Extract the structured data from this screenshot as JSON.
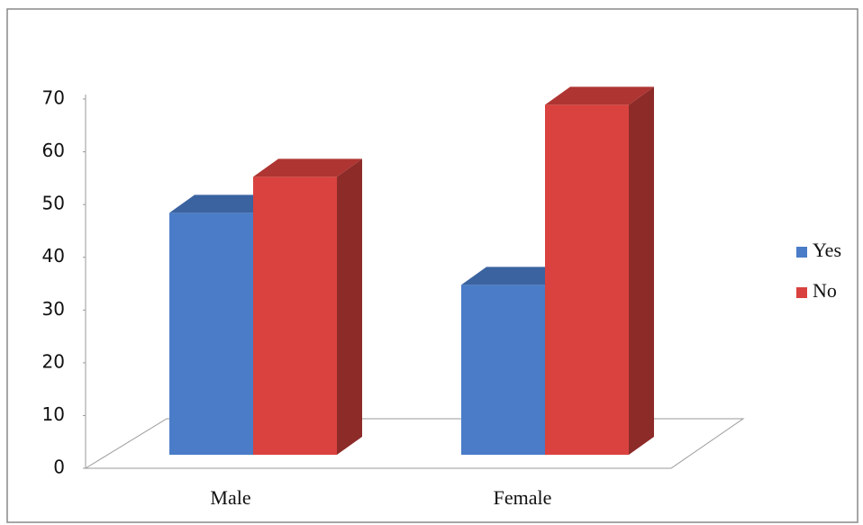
{
  "chart_data": {
    "type": "bar3d",
    "categories": [
      "Male",
      "Female"
    ],
    "series": [
      {
        "name": "Yes",
        "color": "#4a7cc8",
        "values": [
          47,
          33
        ]
      },
      {
        "name": "No",
        "color": "#d9423f",
        "values": [
          54,
          68
        ]
      }
    ],
    "ylim": [
      0,
      70
    ],
    "yticks": [
      0,
      10,
      20,
      30,
      40,
      50,
      60,
      70
    ],
    "legend": "right"
  }
}
